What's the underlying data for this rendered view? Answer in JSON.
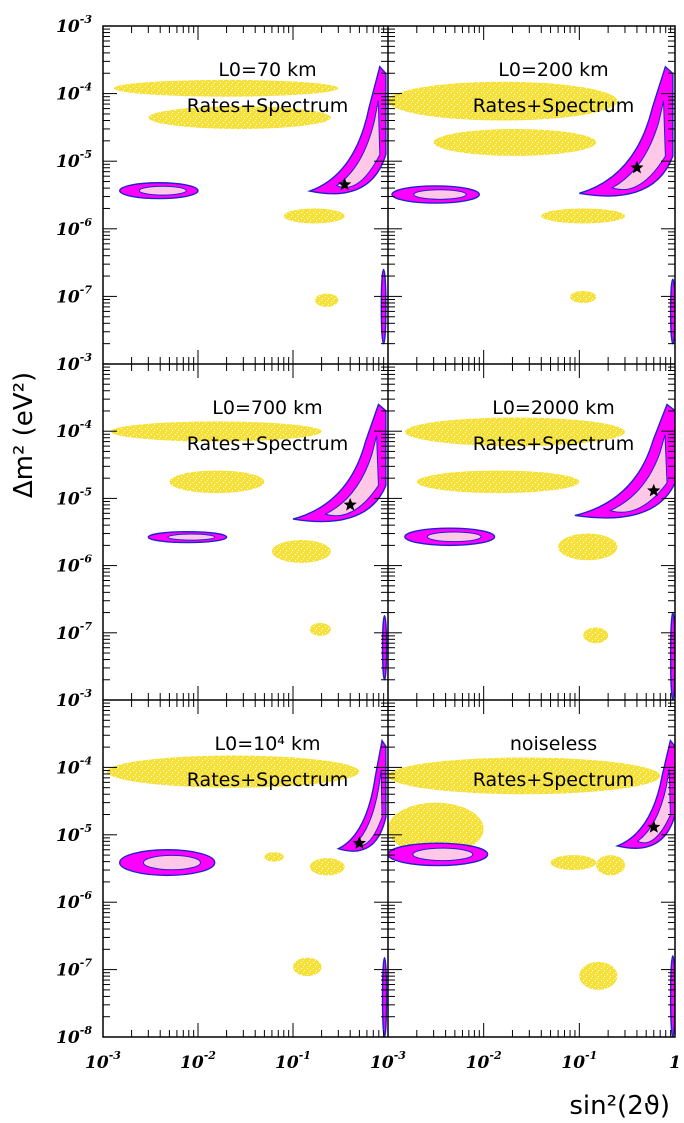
{
  "chart_data": {
    "type": "scatter",
    "title": "",
    "xlabel": "sin²(2ϑ)",
    "ylabel": "Δm² (eV²)",
    "xscale": "log",
    "yscale": "log",
    "xlim": [
      0.001,
      1
    ],
    "ylim": [
      1e-08,
      0.001
    ],
    "grid": false,
    "x_tick_labels": [
      {
        "base": "10",
        "exp": "-3"
      },
      {
        "base": "10",
        "exp": "-2"
      },
      {
        "base": "10",
        "exp": "-1"
      },
      {
        "base": "1",
        "exp": ""
      }
    ],
    "y_tick_labels": [
      {
        "base": "10",
        "exp": "-3"
      },
      {
        "base": "10",
        "exp": "-4"
      },
      {
        "base": "10",
        "exp": "-5"
      },
      {
        "base": "10",
        "exp": "-6"
      },
      {
        "base": "10",
        "exp": "-7"
      },
      {
        "base": "10",
        "exp": "-8"
      }
    ],
    "colors": {
      "yellow_region": "#f5e13a",
      "outer_contour": "#ff00ff",
      "inner_contour": "#ffc8e6",
      "contour_edge": "#2222cc",
      "best_fit": "#000000"
    },
    "panels": [
      {
        "label": "L0=70 km",
        "sublabel": "Rates+Spectrum",
        "best_fit": {
          "x": 0.35,
          "y": 4.5e-06
        },
        "yellow": [
          {
            "x": [
              0.0013,
              0.3
            ],
            "y": [
              9e-05,
              0.00016
            ]
          },
          {
            "x": [
              0.003,
              0.25
            ],
            "y": [
              3e-05,
              6.5e-05
            ]
          },
          {
            "x": [
              0.08,
              0.35
            ],
            "y": [
              1.2e-06,
              2e-06
            ]
          },
          {
            "x": [
              0.17,
              0.3
            ],
            "y": [
              7e-08,
              1.1e-07
            ]
          }
        ],
        "contours": [
          {
            "x": [
              0.0015,
              0.01
            ],
            "y": [
              2.8e-06,
              4.8e-06
            ]
          },
          {
            "x": [
              0.15,
              0.95
            ],
            "y": [
              2.5e-06,
              0.00025
            ]
          },
          {
            "x": [
              0.85,
              0.95
            ],
            "y": [
              2e-08,
              2.5e-07
            ]
          }
        ]
      },
      {
        "label": "L0=200 km",
        "sublabel": "Rates+Spectrum",
        "best_fit": {
          "x": 0.4,
          "y": 8e-06
        },
        "yellow": [
          {
            "x": [
              0.001,
              0.25
            ],
            "y": [
              4e-05,
              0.00015
            ]
          },
          {
            "x": [
              0.003,
              0.15
            ],
            "y": [
              1.2e-05,
              3e-05
            ]
          },
          {
            "x": [
              0.04,
              0.3
            ],
            "y": [
              1.2e-06,
              2e-06
            ]
          },
          {
            "x": [
              0.08,
              0.15
            ],
            "y": [
              8e-08,
              1.2e-07
            ]
          }
        ],
        "contours": [
          {
            "x": [
              0.0011,
              0.009
            ],
            "y": [
              2.4e-06,
              4.3e-06
            ]
          },
          {
            "x": [
              0.1,
              0.95
            ],
            "y": [
              2.3e-06,
              0.00025
            ]
          },
          {
            "x": [
              0.9,
              1
            ],
            "y": [
              2e-08,
              1.8e-07
            ]
          }
        ]
      },
      {
        "label": "L0=700 km",
        "sublabel": "Rates+Spectrum",
        "best_fit": {
          "x": 0.4,
          "y": 8e-06
        },
        "yellow": [
          {
            "x": [
              0.0012,
              0.2
            ],
            "y": [
              7e-05,
              0.00014
            ]
          },
          {
            "x": [
              0.005,
              0.05
            ],
            "y": [
              1.2e-05,
              2.6e-05
            ]
          },
          {
            "x": [
              0.06,
              0.25
            ],
            "y": [
              1.1e-06,
              2.4e-06
            ]
          },
          {
            "x": [
              0.15,
              0.25
            ],
            "y": [
              9e-08,
              1.4e-07
            ]
          }
        ],
        "contours": [
          {
            "x": [
              0.003,
              0.02
            ],
            "y": [
              2.2e-06,
              3.2e-06
            ]
          },
          {
            "x": [
              0.1,
              0.95
            ],
            "y": [
              3.5e-06,
              0.00025
            ]
          },
          {
            "x": [
              0.88,
              0.96
            ],
            "y": [
              2e-08,
              1.8e-07
            ]
          }
        ]
      },
      {
        "label": "L0=2000 km",
        "sublabel": "Rates+Spectrum",
        "best_fit": {
          "x": 0.6,
          "y": 1.3e-05
        },
        "yellow": [
          {
            "x": [
              0.0015,
              0.3
            ],
            "y": [
              6e-05,
              0.00016
            ]
          },
          {
            "x": [
              0.002,
              0.1
            ],
            "y": [
              1.2e-05,
              2.6e-05
            ]
          },
          {
            "x": [
              0.06,
              0.25
            ],
            "y": [
              1.2e-06,
              3e-06
            ]
          },
          {
            "x": [
              0.11,
              0.2
            ],
            "y": [
              7e-08,
              1.2e-07
            ]
          }
        ],
        "contours": [
          {
            "x": [
              0.0015,
              0.013
            ],
            "y": [
              2e-06,
              3.6e-06
            ]
          },
          {
            "x": [
              0.09,
              1
            ],
            "y": [
              4e-06,
              0.00025
            ]
          },
          {
            "x": [
              0.9,
              1
            ],
            "y": [
              1e-08,
              2e-07
            ]
          }
        ]
      },
      {
        "label": "L0=10⁴ km",
        "sublabel": "Rates+Spectrum",
        "best_fit": {
          "x": 0.5,
          "y": 7.5e-06
        },
        "yellow": [
          {
            "x": [
              0.0011,
              0.5
            ],
            "y": [
              5e-05,
              0.00015
            ]
          },
          {
            "x": [
              0.05,
              0.08
            ],
            "y": [
              4e-06,
              5.5e-06
            ]
          },
          {
            "x": [
              0.15,
              0.35
            ],
            "y": [
              2.5e-06,
              4.5e-06
            ]
          },
          {
            "x": [
              0.1,
              0.2
            ],
            "y": [
              8e-08,
              1.5e-07
            ]
          }
        ],
        "contours": [
          {
            "x": [
              0.0015,
              0.015
            ],
            "y": [
              2.5e-06,
              6e-06
            ]
          },
          {
            "x": [
              0.3,
              0.95
            ],
            "y": [
              4.5e-06,
              0.00025
            ]
          },
          {
            "x": [
              0.88,
              0.96
            ],
            "y": [
              1e-08,
              1.5e-07
            ]
          }
        ]
      },
      {
        "label": "noiseless",
        "sublabel": "Rates+Spectrum",
        "best_fit": {
          "x": 0.6,
          "y": 1.3e-05
        },
        "yellow": [
          {
            "x": [
              0.001,
              0.7
            ],
            "y": [
              4e-05,
              0.00014
            ]
          },
          {
            "x": [
              0.001,
              0.01
            ],
            "y": [
              5e-06,
              3e-05
            ]
          },
          {
            "x": [
              0.05,
              0.15
            ],
            "y": [
              3e-06,
              5e-06
            ]
          },
          {
            "x": [
              0.15,
              0.3
            ],
            "y": [
              2.5e-06,
              5e-06
            ]
          },
          {
            "x": [
              0.1,
              0.25
            ],
            "y": [
              5e-08,
              1.3e-07
            ]
          }
        ],
        "contours": [
          {
            "x": [
              0.001,
              0.011
            ],
            "y": [
              3.5e-06,
              7.5e-06
            ]
          },
          {
            "x": [
              0.25,
              1
            ],
            "y": [
              5e-06,
              0.00025
            ]
          },
          {
            "x": [
              0.9,
              1
            ],
            "y": [
              1e-08,
              1.6e-07
            ]
          }
        ]
      }
    ]
  }
}
